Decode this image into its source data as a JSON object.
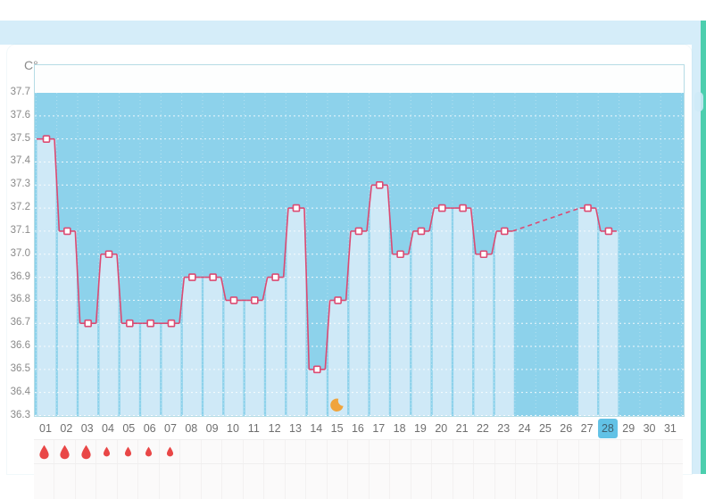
{
  "page": {
    "unit_label": "C°",
    "colors": {
      "band_blue": "#d5edf9",
      "teal_edge": "#4ccfae",
      "chart_border": "#b6dce5",
      "plot_bg": "#8dd2eb",
      "plot_top_bg": "#fdfefe",
      "column_highlight": "#cfe9f7",
      "grid_dotted": "#ffffff",
      "line": "#dc4a72",
      "marker_fill": "#ffffff",
      "day_highlight_bg": "#62c2e6",
      "day_highlight_text": "#3f606f",
      "axis_text": "#8a8a8a",
      "day_text": "#6f6f6f",
      "droplet_red": "#e94747",
      "moon_orange": "#f0a43c",
      "symbol_row_bg": "#fbfafa",
      "symbol_row_border": "#f0eeee"
    }
  },
  "chart_data": {
    "type": "line",
    "title": "",
    "ylabel": "C°",
    "unit_label": "C°",
    "ylim": [
      36.3,
      37.7
    ],
    "y_ticks": [
      "37.7",
      "37.6",
      "37.5",
      "37.4",
      "37.3",
      "37.2",
      "37.1",
      "37.0",
      "36.9",
      "36.8",
      "36.7",
      "36.6",
      "36.5",
      "36.4",
      "36.3"
    ],
    "x_labels": [
      "01",
      "02",
      "03",
      "04",
      "05",
      "06",
      "07",
      "08",
      "09",
      "10",
      "11",
      "12",
      "13",
      "14",
      "15",
      "16",
      "17",
      "18",
      "19",
      "20",
      "21",
      "22",
      "23",
      "24",
      "25",
      "26",
      "27",
      "28",
      "29",
      "30",
      "31"
    ],
    "selected_day": "28",
    "grid": "dotted-white",
    "legend": "none",
    "series": [
      {
        "name": "basal-body-temperature",
        "values": [
          37.5,
          37.1,
          36.7,
          37.0,
          36.7,
          36.7,
          36.7,
          36.9,
          36.9,
          36.8,
          36.8,
          36.9,
          37.2,
          36.5,
          36.8,
          37.1,
          37.3,
          37.0,
          37.1,
          37.2,
          37.2,
          37.0,
          37.1,
          null,
          null,
          null,
          37.2,
          37.1,
          null,
          null,
          null
        ],
        "gap_connector_style": "dashed",
        "marker": "square"
      }
    ],
    "annotations": {
      "moon_icon_day": 15,
      "period_flow": [
        {
          "day": 1,
          "intensity": "heavy"
        },
        {
          "day": 2,
          "intensity": "heavy"
        },
        {
          "day": 3,
          "intensity": "heavy"
        },
        {
          "day": 4,
          "intensity": "light"
        },
        {
          "day": 5,
          "intensity": "light"
        },
        {
          "day": 6,
          "intensity": "light"
        },
        {
          "day": 7,
          "intensity": "light"
        }
      ]
    }
  }
}
